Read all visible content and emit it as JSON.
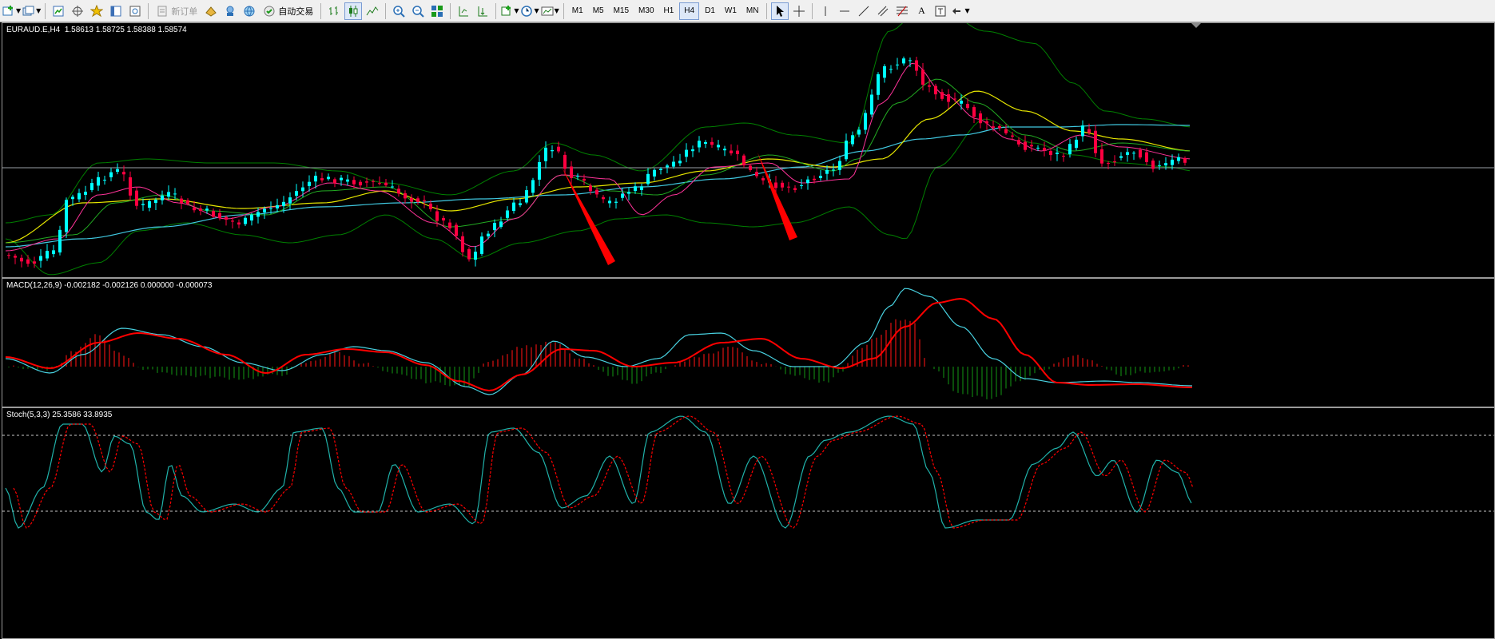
{
  "toolbar": {
    "new_order_label": "新订单",
    "auto_trading_label": "自动交易",
    "timeframes": [
      "M1",
      "M5",
      "M15",
      "M30",
      "H1",
      "H4",
      "D1",
      "W1",
      "MN"
    ],
    "active_timeframe": "H4",
    "text_tool_label": "A"
  },
  "main_chart": {
    "symbol_label": "EURAUD.E,H4",
    "ohlc_label": "1.58613 1.58725 1.58388 1.58574",
    "bull_color": "#00ffff",
    "bear_color": "#ff0040"
  },
  "macd_pane": {
    "label": "MACD(12,26,9) -0.002182 -0.002126 0.000000 -0.000073",
    "main_color": "#48d1e0",
    "signal_color": "#ff0000"
  },
  "stoch_pane": {
    "label": "Stoch(5,3,3) 25.3586 33.8935",
    "main_color": "#20b2aa",
    "signal_color": "#ff0000"
  },
  "colors": {
    "background": "#000000",
    "bollinger": "#008000",
    "ma_fast": "#ff3399",
    "ma_mid": "#22aa22",
    "ma_slow": "#e6e600",
    "ma_long": "#40c8e0",
    "arrow": "#ff0000"
  }
}
